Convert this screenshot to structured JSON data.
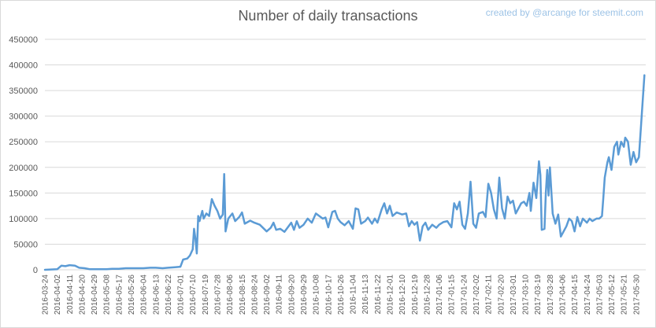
{
  "chart_data": {
    "type": "line",
    "title": "Number of daily transactions",
    "credit": "created by @arcange for steemit.com",
    "xlabel": "",
    "ylabel": "",
    "ylim": [
      0,
      450000
    ],
    "yticks": [
      0,
      50000,
      100000,
      150000,
      200000,
      250000,
      300000,
      350000,
      400000,
      450000
    ],
    "x_start": "2016-03-24",
    "x_end": "2017-06-06",
    "xticks": [
      "2016-03-24",
      "2016-04-02",
      "2016-04-11",
      "2016-04-20",
      "2016-04-29",
      "2016-05-08",
      "2016-05-17",
      "2016-05-26",
      "2016-06-04",
      "2016-06-13",
      "2016-06-22",
      "2016-07-01",
      "2016-07-10",
      "2016-07-19",
      "2016-07-28",
      "2016-08-06",
      "2016-08-15",
      "2016-08-24",
      "2016-09-02",
      "2016-09-11",
      "2016-09-20",
      "2016-09-29",
      "2016-10-08",
      "2016-10-17",
      "2016-10-26",
      "2016-11-04",
      "2016-11-13",
      "2016-11-22",
      "2016-12-01",
      "2016-12-10",
      "2016-12-19",
      "2016-12-28",
      "2017-01-06",
      "2017-01-15",
      "2017-01-24",
      "2017-02-02",
      "2017-02-11",
      "2017-02-20",
      "2017-03-01",
      "2017-03-10",
      "2017-03-19",
      "2017-03-28",
      "2017-04-06",
      "2017-04-15",
      "2017-04-24",
      "2017-05-03",
      "2017-05-12",
      "2017-05-21",
      "2017-05-30"
    ],
    "grid": "horizontal",
    "legend": "none",
    "line_color": "#5b9bd5",
    "series": [
      {
        "name": "",
        "points": [
          [
            "2016-03-24",
            0
          ],
          [
            "2016-04-02",
            1000
          ],
          [
            "2016-04-05",
            8000
          ],
          [
            "2016-04-08",
            7000
          ],
          [
            "2016-04-11",
            9000
          ],
          [
            "2016-04-15",
            8000
          ],
          [
            "2016-04-18",
            4000
          ],
          [
            "2016-04-22",
            3000
          ],
          [
            "2016-04-26",
            1000
          ],
          [
            "2016-05-08",
            1000
          ],
          [
            "2016-05-12",
            2000
          ],
          [
            "2016-05-17",
            2000
          ],
          [
            "2016-05-22",
            3000
          ],
          [
            "2016-05-26",
            3000
          ],
          [
            "2016-06-04",
            3000
          ],
          [
            "2016-06-09",
            4000
          ],
          [
            "2016-06-13",
            4000
          ],
          [
            "2016-06-18",
            3000
          ],
          [
            "2016-06-22",
            4000
          ],
          [
            "2016-06-27",
            5000
          ],
          [
            "2016-07-01",
            6000
          ],
          [
            "2016-07-03",
            20000
          ],
          [
            "2016-07-06",
            22000
          ],
          [
            "2016-07-08",
            28000
          ],
          [
            "2016-07-10",
            40000
          ],
          [
            "2016-07-11",
            80000
          ],
          [
            "2016-07-12",
            60000
          ],
          [
            "2016-07-13",
            32000
          ],
          [
            "2016-07-14",
            105000
          ],
          [
            "2016-07-15",
            95000
          ],
          [
            "2016-07-17",
            115000
          ],
          [
            "2016-07-18",
            100000
          ],
          [
            "2016-07-20",
            110000
          ],
          [
            "2016-07-22",
            105000
          ],
          [
            "2016-07-24",
            138000
          ],
          [
            "2016-07-26",
            125000
          ],
          [
            "2016-07-28",
            115000
          ],
          [
            "2016-07-30",
            100000
          ],
          [
            "2016-08-01",
            108000
          ],
          [
            "2016-08-02",
            187000
          ],
          [
            "2016-08-03",
            75000
          ],
          [
            "2016-08-05",
            100000
          ],
          [
            "2016-08-08",
            110000
          ],
          [
            "2016-08-10",
            95000
          ],
          [
            "2016-08-13",
            103000
          ],
          [
            "2016-08-15",
            112000
          ],
          [
            "2016-08-17",
            90000
          ],
          [
            "2016-08-21",
            96000
          ],
          [
            "2016-08-24",
            92000
          ],
          [
            "2016-08-28",
            88000
          ],
          [
            "2016-09-02",
            75000
          ],
          [
            "2016-09-05",
            82000
          ],
          [
            "2016-09-07",
            92000
          ],
          [
            "2016-09-09",
            78000
          ],
          [
            "2016-09-12",
            80000
          ],
          [
            "2016-09-15",
            74000
          ],
          [
            "2016-09-18",
            85000
          ],
          [
            "2016-09-20",
            92000
          ],
          [
            "2016-09-22",
            78000
          ],
          [
            "2016-09-24",
            95000
          ],
          [
            "2016-09-26",
            82000
          ],
          [
            "2016-09-29",
            88000
          ],
          [
            "2016-10-02",
            100000
          ],
          [
            "2016-10-05",
            92000
          ],
          [
            "2016-10-08",
            110000
          ],
          [
            "2016-10-10",
            106000
          ],
          [
            "2016-10-13",
            100000
          ],
          [
            "2016-10-15",
            102000
          ],
          [
            "2016-10-17",
            83000
          ],
          [
            "2016-10-20",
            113000
          ],
          [
            "2016-10-22",
            115000
          ],
          [
            "2016-10-24",
            100000
          ],
          [
            "2016-10-26",
            93000
          ],
          [
            "2016-10-29",
            87000
          ],
          [
            "2016-11-01",
            95000
          ],
          [
            "2016-11-04",
            80000
          ],
          [
            "2016-11-06",
            120000
          ],
          [
            "2016-11-08",
            118000
          ],
          [
            "2016-11-10",
            90000
          ],
          [
            "2016-11-13",
            95000
          ],
          [
            "2016-11-15",
            102000
          ],
          [
            "2016-11-18",
            90000
          ],
          [
            "2016-11-20",
            100000
          ],
          [
            "2016-11-22",
            92000
          ],
          [
            "2016-11-25",
            118000
          ],
          [
            "2016-11-27",
            130000
          ],
          [
            "2016-11-29",
            110000
          ],
          [
            "2016-12-01",
            125000
          ],
          [
            "2016-12-03",
            105000
          ],
          [
            "2016-12-06",
            112000
          ],
          [
            "2016-12-10",
            108000
          ],
          [
            "2016-12-13",
            110000
          ],
          [
            "2016-12-15",
            85000
          ],
          [
            "2016-12-17",
            95000
          ],
          [
            "2016-12-19",
            88000
          ],
          [
            "2016-12-21",
            93000
          ],
          [
            "2016-12-23",
            57000
          ],
          [
            "2016-12-25",
            85000
          ],
          [
            "2016-12-27",
            92000
          ],
          [
            "2016-12-29",
            78000
          ],
          [
            "2017-01-01",
            88000
          ],
          [
            "2017-01-04",
            82000
          ],
          [
            "2017-01-06",
            88000
          ],
          [
            "2017-01-09",
            93000
          ],
          [
            "2017-01-12",
            95000
          ],
          [
            "2017-01-15",
            83000
          ],
          [
            "2017-01-17",
            130000
          ],
          [
            "2017-01-19",
            118000
          ],
          [
            "2017-01-21",
            133000
          ],
          [
            "2017-01-23",
            88000
          ],
          [
            "2017-01-25",
            80000
          ],
          [
            "2017-01-27",
            110000
          ],
          [
            "2017-01-29",
            172000
          ],
          [
            "2017-01-31",
            90000
          ],
          [
            "2017-02-02",
            82000
          ],
          [
            "2017-02-04",
            110000
          ],
          [
            "2017-02-07",
            113000
          ],
          [
            "2017-02-09",
            103000
          ],
          [
            "2017-02-11",
            168000
          ],
          [
            "2017-02-13",
            150000
          ],
          [
            "2017-02-15",
            118000
          ],
          [
            "2017-02-17",
            100000
          ],
          [
            "2017-02-19",
            180000
          ],
          [
            "2017-02-21",
            120000
          ],
          [
            "2017-02-23",
            100000
          ],
          [
            "2017-02-25",
            143000
          ],
          [
            "2017-02-27",
            130000
          ],
          [
            "2017-03-01",
            135000
          ],
          [
            "2017-03-03",
            110000
          ],
          [
            "2017-03-05",
            120000
          ],
          [
            "2017-03-07",
            130000
          ],
          [
            "2017-03-09",
            133000
          ],
          [
            "2017-03-11",
            125000
          ],
          [
            "2017-03-13",
            150000
          ],
          [
            "2017-03-14",
            115000
          ],
          [
            "2017-03-16",
            170000
          ],
          [
            "2017-03-18",
            140000
          ],
          [
            "2017-03-20",
            212000
          ],
          [
            "2017-03-21",
            185000
          ],
          [
            "2017-03-22",
            78000
          ],
          [
            "2017-03-24",
            80000
          ],
          [
            "2017-03-25",
            150000
          ],
          [
            "2017-03-26",
            195000
          ],
          [
            "2017-03-27",
            145000
          ],
          [
            "2017-03-28",
            200000
          ],
          [
            "2017-03-30",
            110000
          ],
          [
            "2017-04-01",
            90000
          ],
          [
            "2017-04-03",
            108000
          ],
          [
            "2017-04-05",
            65000
          ],
          [
            "2017-04-07",
            75000
          ],
          [
            "2017-04-09",
            85000
          ],
          [
            "2017-04-11",
            100000
          ],
          [
            "2017-04-13",
            95000
          ],
          [
            "2017-04-15",
            75000
          ],
          [
            "2017-04-17",
            103000
          ],
          [
            "2017-04-19",
            85000
          ],
          [
            "2017-04-21",
            100000
          ],
          [
            "2017-04-24",
            92000
          ],
          [
            "2017-04-26",
            100000
          ],
          [
            "2017-04-28",
            95000
          ],
          [
            "2017-05-01",
            100000
          ],
          [
            "2017-05-03",
            100000
          ],
          [
            "2017-05-05",
            105000
          ],
          [
            "2017-05-06",
            140000
          ],
          [
            "2017-05-07",
            180000
          ],
          [
            "2017-05-09",
            210000
          ],
          [
            "2017-05-10",
            220000
          ],
          [
            "2017-05-12",
            195000
          ],
          [
            "2017-05-14",
            240000
          ],
          [
            "2017-05-16",
            250000
          ],
          [
            "2017-05-17",
            225000
          ],
          [
            "2017-05-19",
            250000
          ],
          [
            "2017-05-21",
            240000
          ],
          [
            "2017-05-22",
            258000
          ],
          [
            "2017-05-24",
            250000
          ],
          [
            "2017-05-26",
            205000
          ],
          [
            "2017-05-28",
            230000
          ],
          [
            "2017-05-30",
            210000
          ],
          [
            "2017-06-01",
            220000
          ],
          [
            "2017-06-03",
            300000
          ],
          [
            "2017-06-05",
            380000
          ]
        ]
      }
    ]
  }
}
